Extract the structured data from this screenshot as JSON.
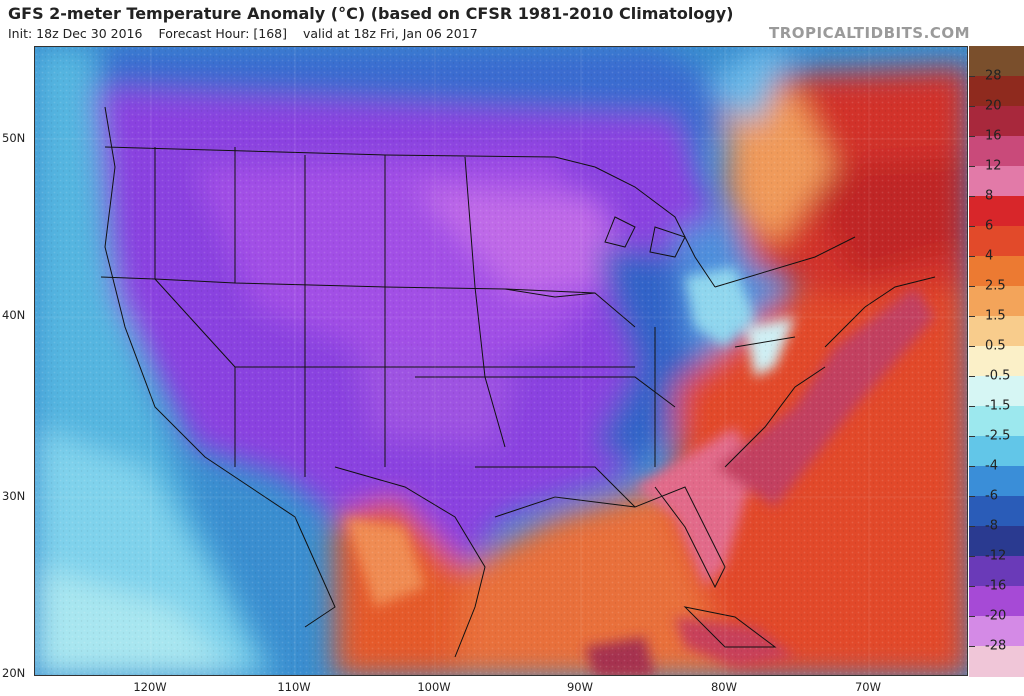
{
  "header": {
    "title": "GFS 2-meter Temperature Anomaly (°C) (based on CFSR 1981-2010 Climatology)",
    "init": "Init: 18z Dec 30 2016",
    "forecast_hour": "Forecast Hour: [168]",
    "valid": "valid at 18z Fri, Jan 06 2017",
    "brand": "TROPICALTIDBITS.COM"
  },
  "map": {
    "lat_labels": [
      "50N",
      "40N",
      "30N",
      "20N"
    ],
    "lon_labels": [
      "120W",
      "110W",
      "100W",
      "90W",
      "80W",
      "70W"
    ]
  },
  "colorbar": {
    "labels": [
      "28",
      "20",
      "16",
      "12",
      "8",
      "6",
      "4",
      "2.5",
      "1.5",
      "0.5",
      "-0.5",
      "-1.5",
      "-2.5",
      "-4",
      "-6",
      "-8",
      "-12",
      "-16",
      "-20",
      "-28"
    ],
    "colors": [
      "#7a4f2c",
      "#8f2a1e",
      "#a8283c",
      "#c94a7a",
      "#e27aa8",
      "#d8262a",
      "#e24a2a",
      "#ec7a32",
      "#f3a45a",
      "#f8cc8c",
      "#fbf0c8",
      "#d6f6f4",
      "#9ce8ee",
      "#62c6e8",
      "#3a8ed8",
      "#2a5cb8",
      "#2a3a90",
      "#6a3ab8",
      "#a64ad6",
      "#d48ae6",
      "#f0c6d8"
    ]
  },
  "colors": {
    "cold_purple": "#8c3fe0",
    "cold_blue": "#2f63c6",
    "warm_red": "#d8302a",
    "warm_orange": "#ea7438",
    "ocean_cool": "#4aa9dc"
  }
}
